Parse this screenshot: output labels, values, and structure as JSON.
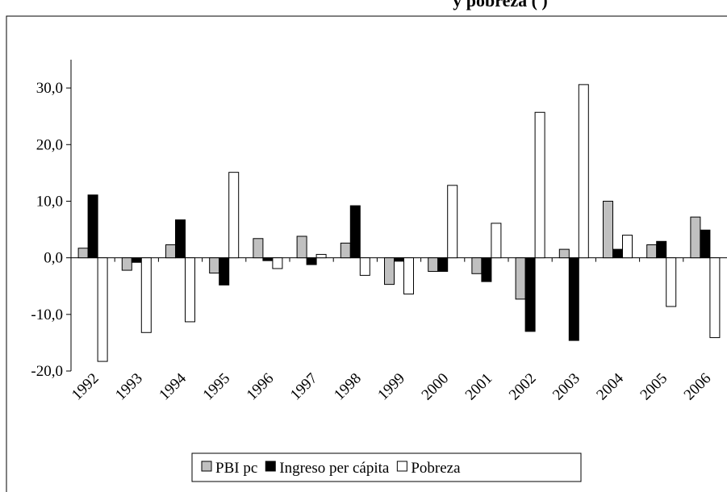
{
  "chart_data": {
    "type": "bar",
    "title": "y pobreza ( )",
    "categories": [
      "1992",
      "1993",
      "1994",
      "1995",
      "1996",
      "1997",
      "1998",
      "1999",
      "2000",
      "2001",
      "2002",
      "2003",
      "2004",
      "2005",
      "2006"
    ],
    "series": [
      {
        "name": "PBI pc",
        "color": "#c0c0c0",
        "values": [
          1.7,
          -2.2,
          2.3,
          -2.7,
          3.4,
          3.8,
          2.6,
          -4.7,
          -2.4,
          -2.8,
          -7.3,
          1.5,
          10.0,
          2.3,
          7.2
        ]
      },
      {
        "name": "Ingreso per cápita",
        "color": "#000000",
        "values": [
          11.1,
          -0.8,
          6.7,
          -4.8,
          -0.5,
          -1.2,
          9.2,
          -0.6,
          -2.4,
          -4.2,
          -13.0,
          -14.6,
          1.5,
          2.9,
          4.9
        ]
      },
      {
        "name": "Pobreza",
        "color": "#ffffff",
        "values": [
          -18.3,
          -13.2,
          -11.3,
          15.1,
          -1.9,
          0.6,
          -3.1,
          -6.4,
          12.8,
          6.1,
          25.7,
          30.6,
          4.0,
          -8.6,
          -14.1
        ]
      }
    ],
    "ylim": [
      -20,
      35
    ],
    "yticks": [
      {
        "value": -20,
        "label": "-20,0"
      },
      {
        "value": -10,
        "label": "-10,0"
      },
      {
        "value": 0,
        "label": "0,0"
      },
      {
        "value": 10,
        "label": "10,0"
      },
      {
        "value": 20,
        "label": "20,0"
      },
      {
        "value": 30,
        "label": "30,0"
      }
    ],
    "legend": "bottom"
  }
}
